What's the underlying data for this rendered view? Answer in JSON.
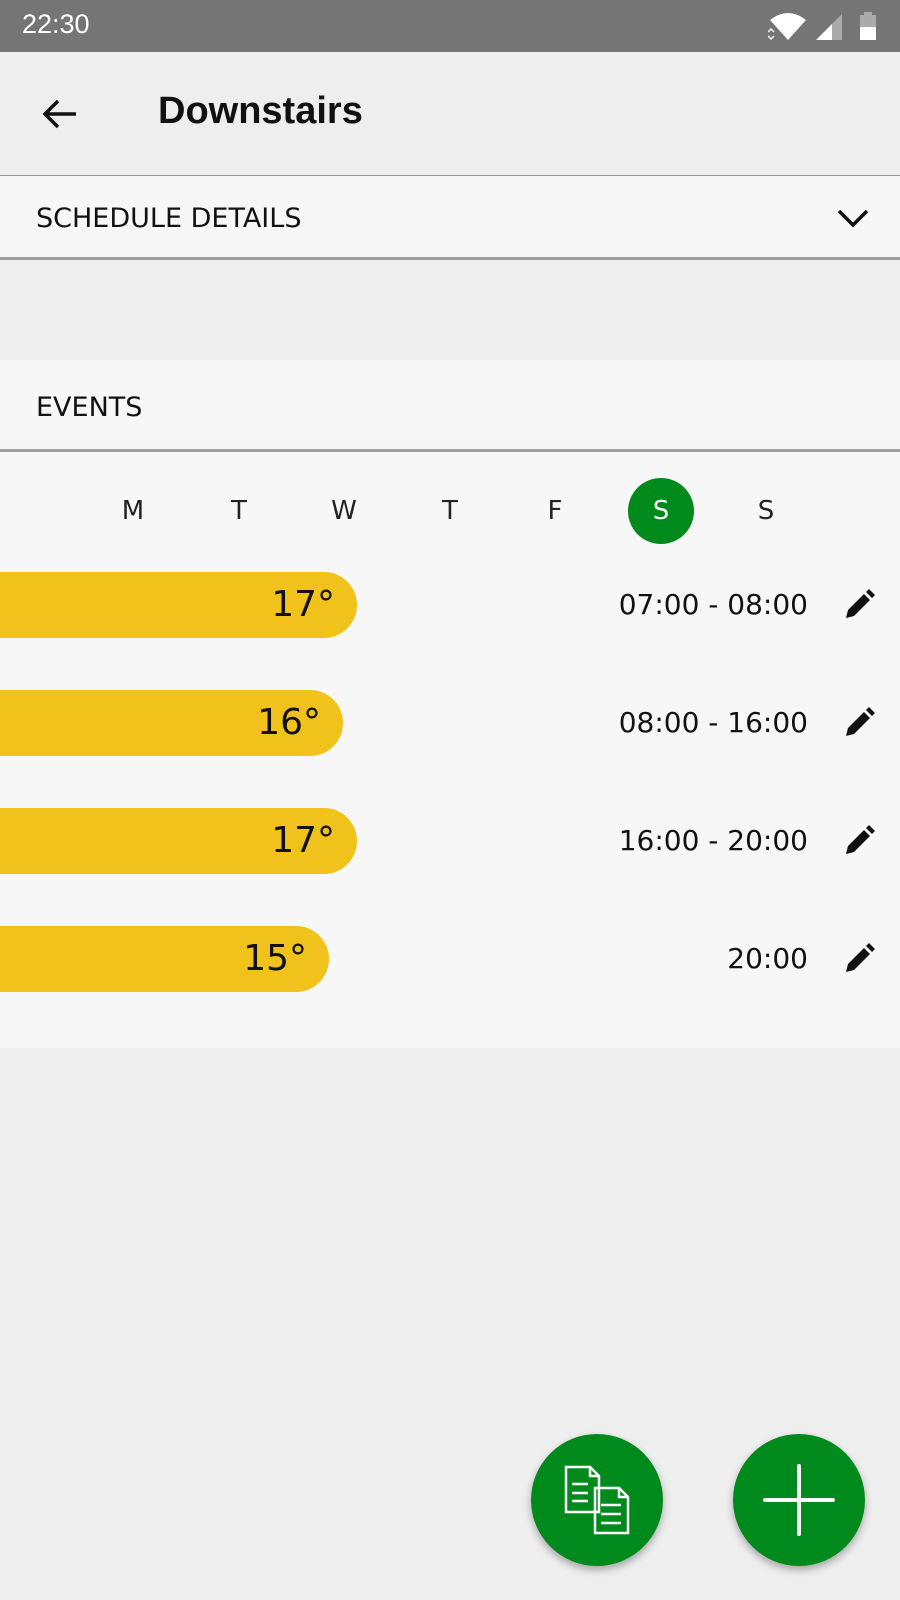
{
  "status_bar": {
    "time": "22:30",
    "icons": [
      "wifi-icon",
      "signal-icon",
      "battery-icon"
    ]
  },
  "app_bar": {
    "title": "Downstairs",
    "back_icon": "arrow-left-icon"
  },
  "schedule_details": {
    "label": "SCHEDULE DETAILS",
    "icon": "chevron-down-icon"
  },
  "events": {
    "label": "EVENTS"
  },
  "days": [
    {
      "label": "M",
      "selected": false
    },
    {
      "label": "T",
      "selected": false
    },
    {
      "label": "W",
      "selected": false
    },
    {
      "label": "T",
      "selected": false
    },
    {
      "label": "F",
      "selected": false
    },
    {
      "label": "S",
      "selected": true
    },
    {
      "label": "S",
      "selected": false
    }
  ],
  "event_rows": [
    {
      "temp": "17°",
      "time": "07:00 - 08:00"
    },
    {
      "temp": "16°",
      "time": "08:00 - 16:00"
    },
    {
      "temp": "17°",
      "time": "16:00 - 20:00"
    },
    {
      "temp": "15°",
      "time": "20:00"
    }
  ],
  "fabs": {
    "copy_icon": "copy-documents-icon",
    "add_icon": "plus-icon"
  },
  "colors": {
    "accent": "#008a1c",
    "temp_bar": "#f0c21b",
    "status_bar": "#757575"
  }
}
